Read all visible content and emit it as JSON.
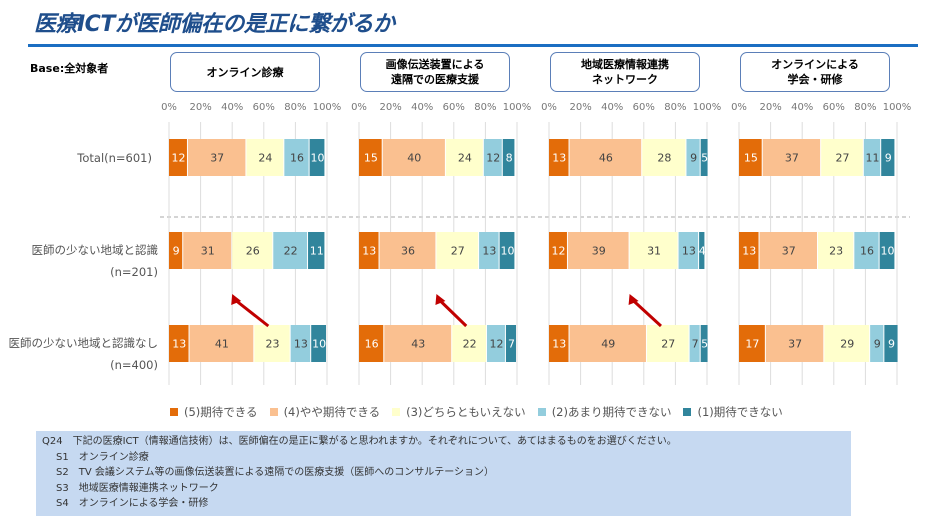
{
  "title": "医療ICTが医師偏在の是正に繋がるか",
  "base": "Base:全対象者",
  "colors": [
    "#E36C09",
    "#FAC090",
    "#FFFFCC",
    "#93CDDD",
    "#31859C"
  ],
  "legend": [
    "(5)期待できる",
    "(4)やや期待できる",
    "(3)どちらともいえない",
    "(2)あまり期待できない",
    "(1)期待できない"
  ],
  "row_labels": [
    "Total(n=601)",
    "医師の少ない地域と認識(n=201)",
    "医師の少ない地域と認識なし(n=400)"
  ],
  "chart_data": [
    {
      "type": "bar",
      "stacked": true,
      "orientation": "horizontal",
      "title": "オンライン診療",
      "xlim": [
        0,
        100
      ],
      "ticks": [
        "0%",
        "20%",
        "40%",
        "60%",
        "80%",
        "100%"
      ],
      "categories": [
        "Total(n=601)",
        "医師の少ない地域と認識(n=201)",
        "医師の少ない地域と認識なし(n=400)"
      ],
      "values": [
        [
          12,
          37,
          24,
          16,
          10
        ],
        [
          9,
          31,
          26,
          22,
          11
        ],
        [
          13,
          41,
          23,
          13,
          10
        ]
      ]
    },
    {
      "type": "bar",
      "stacked": true,
      "orientation": "horizontal",
      "title": "画像伝送装置による\n遠隔での医療支援",
      "xlim": [
        0,
        100
      ],
      "ticks": [
        "0%",
        "20%",
        "40%",
        "60%",
        "80%",
        "100%"
      ],
      "categories": [
        "Total(n=601)",
        "医師の少ない地域と認識(n=201)",
        "医師の少ない地域と認識なし(n=400)"
      ],
      "values": [
        [
          15,
          40,
          24,
          12,
          8
        ],
        [
          13,
          36,
          27,
          13,
          10
        ],
        [
          16,
          43,
          22,
          12,
          7
        ]
      ]
    },
    {
      "type": "bar",
      "stacked": true,
      "orientation": "horizontal",
      "title": "地域医療情報連携\nネットワーク",
      "xlim": [
        0,
        100
      ],
      "ticks": [
        "0%",
        "20%",
        "40%",
        "60%",
        "80%",
        "100%"
      ],
      "categories": [
        "Total(n=601)",
        "医師の少ない地域と認識(n=201)",
        "医師の少ない地域と認識なし(n=400)"
      ],
      "values": [
        [
          13,
          46,
          28,
          9,
          5
        ],
        [
          12,
          39,
          31,
          13,
          4
        ],
        [
          13,
          49,
          27,
          7,
          5
        ]
      ]
    },
    {
      "type": "bar",
      "stacked": true,
      "orientation": "horizontal",
      "title": "オンラインによる\n学会・研修",
      "xlim": [
        0,
        100
      ],
      "ticks": [
        "0%",
        "20%",
        "40%",
        "60%",
        "80%",
        "100%"
      ],
      "categories": [
        "Total(n=601)",
        "医師の少ない地域と認識(n=201)",
        "医師の少ない地域と認識なし(n=400)"
      ],
      "values": [
        [
          15,
          37,
          27,
          11,
          9
        ],
        [
          13,
          37,
          23,
          16,
          10
        ],
        [
          17,
          37,
          29,
          9,
          9
        ]
      ]
    }
  ],
  "note": {
    "question": "Q24　下記の医療ICT（情報通信技術）は、医師偏在の是正に繋がると思われますか。それぞれについて、あてはまるものをお選びください。",
    "items": [
      "S1　オンライン診療",
      "S2　TV 会議システム等の画像伝送装置による遠隔での医療支援（医師へのコンサルテーション）",
      "S3　地域医療情報連携ネットワーク",
      "S4　オンラインによる学会・研修"
    ]
  }
}
